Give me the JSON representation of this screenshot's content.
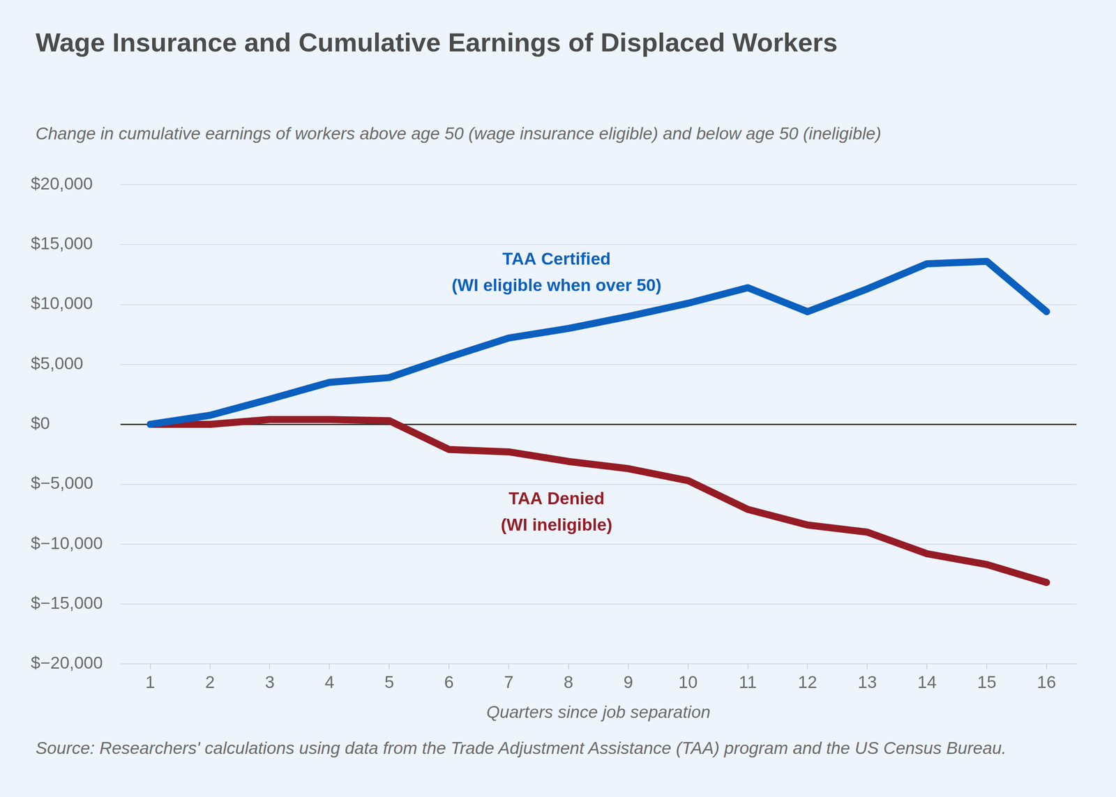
{
  "chart_data": {
    "type": "line",
    "title": "Wage Insurance and Cumulative Earnings of Displaced Workers",
    "subtitle": "Change in cumulative earnings of workers above age 50 (wage insurance eligible) and below age 50 (ineligible)",
    "x_label": "Quarters since job separation",
    "source": "Source: Researchers' calculations using data from the Trade Adjustment Assistance (TAA) program and the US Census Bureau.",
    "categories": [
      1,
      2,
      3,
      4,
      5,
      6,
      7,
      8,
      9,
      10,
      11,
      12,
      13,
      14,
      15,
      16
    ],
    "series": [
      {
        "name": "TAA Certified",
        "sublabel": "(WI eligible when over 50)",
        "color": "#0a5fbf",
        "values": [
          0,
          750,
          2100,
          3500,
          3900,
          5600,
          7200,
          8000,
          9000,
          10100,
          11400,
          9400,
          11300,
          13400,
          13600,
          9400
        ]
      },
      {
        "name": "TAA Denied",
        "sublabel": "(WI ineligible)",
        "color": "#951c25",
        "values": [
          0,
          0,
          400,
          400,
          300,
          -2100,
          -2300,
          -3100,
          -3700,
          -4700,
          -7100,
          -8400,
          -9000,
          -10800,
          -11700,
          -13200
        ]
      }
    ],
    "ylim": [
      -20000,
      20000
    ],
    "yticks": [
      {
        "value": -20000,
        "label": "$−20,000"
      },
      {
        "value": -15000,
        "label": "$−15,000"
      },
      {
        "value": -10000,
        "label": "$−10,000"
      },
      {
        "value": -5000,
        "label": "$−5,000"
      },
      {
        "value": 0,
        "label": "$0"
      },
      {
        "value": 5000,
        "label": "$5,000"
      },
      {
        "value": 10000,
        "label": "$10,000"
      },
      {
        "value": 15000,
        "label": "$15,000"
      },
      {
        "value": 20000,
        "label": "$20,000"
      }
    ],
    "grid": true
  }
}
